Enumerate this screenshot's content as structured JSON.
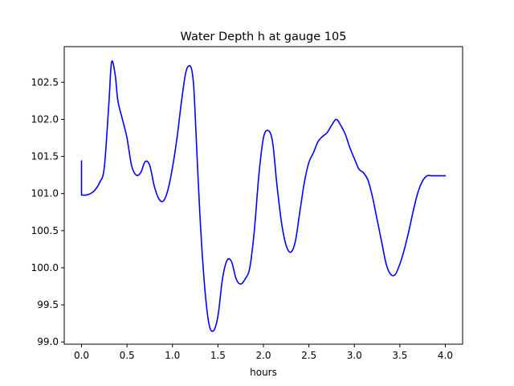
{
  "chart_data": {
    "type": "line",
    "title": "Water Depth h at gauge 105",
    "xlabel": "hours",
    "ylabel": "",
    "xlim": [
      -0.19,
      4.19
    ],
    "ylim": [
      98.97,
      102.98
    ],
    "grid": false,
    "legend": "none",
    "x_ticks": [
      0.0,
      0.5,
      1.0,
      1.5,
      2.0,
      2.5,
      3.0,
      3.5,
      4.0
    ],
    "x_tick_labels": [
      "0.0",
      "0.5",
      "1.0",
      "1.5",
      "2.0",
      "2.5",
      "3.0",
      "3.5",
      "4.0"
    ],
    "y_ticks": [
      99.0,
      99.5,
      100.0,
      100.5,
      101.0,
      101.5,
      102.0,
      102.5
    ],
    "y_tick_labels": [
      "99.0",
      "99.5",
      "100.0",
      "100.5",
      "101.0",
      "101.5",
      "102.0",
      "102.5"
    ],
    "colors": {
      "line": "#0000ff",
      "axes": "#000000",
      "background": "#ffffff"
    },
    "series": [
      {
        "x": [
          0.0,
          0.0,
          0.05,
          0.1,
          0.15,
          0.2,
          0.25,
          0.3,
          0.33,
          0.37,
          0.4,
          0.45,
          0.5,
          0.55,
          0.6,
          0.65,
          0.7,
          0.75,
          0.8,
          0.85,
          0.9,
          0.95,
          1.0,
          1.05,
          1.1,
          1.15,
          1.2,
          1.23,
          1.25,
          1.3,
          1.35,
          1.4,
          1.45,
          1.5,
          1.55,
          1.6,
          1.65,
          1.7,
          1.75,
          1.8,
          1.85,
          1.9,
          1.95,
          2.0,
          2.05,
          2.1,
          2.15,
          2.2,
          2.25,
          2.3,
          2.35,
          2.4,
          2.45,
          2.5,
          2.55,
          2.6,
          2.65,
          2.7,
          2.75,
          2.8,
          2.85,
          2.9,
          2.95,
          3.0,
          3.05,
          3.1,
          3.15,
          3.2,
          3.25,
          3.3,
          3.35,
          3.4,
          3.45,
          3.5,
          3.55,
          3.6,
          3.65,
          3.7,
          3.75,
          3.8,
          3.85,
          3.9,
          3.95,
          4.0
        ],
        "values": [
          101.44,
          100.98,
          100.98,
          101.0,
          101.05,
          101.15,
          101.35,
          102.2,
          102.77,
          102.6,
          102.25,
          102.0,
          101.75,
          101.38,
          101.25,
          101.28,
          101.43,
          101.38,
          101.1,
          100.93,
          100.9,
          101.05,
          101.35,
          101.75,
          102.25,
          102.65,
          102.71,
          102.5,
          102.05,
          100.75,
          99.8,
          99.25,
          99.15,
          99.35,
          99.85,
          100.1,
          100.08,
          99.85,
          99.78,
          99.85,
          100.0,
          100.5,
          101.25,
          101.75,
          101.85,
          101.7,
          101.1,
          100.6,
          100.3,
          100.21,
          100.35,
          100.75,
          101.15,
          101.42,
          101.55,
          101.7,
          101.77,
          101.82,
          101.92,
          102.0,
          101.92,
          101.8,
          101.62,
          101.47,
          101.33,
          101.28,
          101.18,
          100.95,
          100.65,
          100.35,
          100.05,
          99.91,
          99.91,
          100.05,
          100.25,
          100.5,
          100.78,
          101.02,
          101.17,
          101.24,
          101.24,
          101.24,
          101.24,
          101.24
        ]
      }
    ]
  }
}
